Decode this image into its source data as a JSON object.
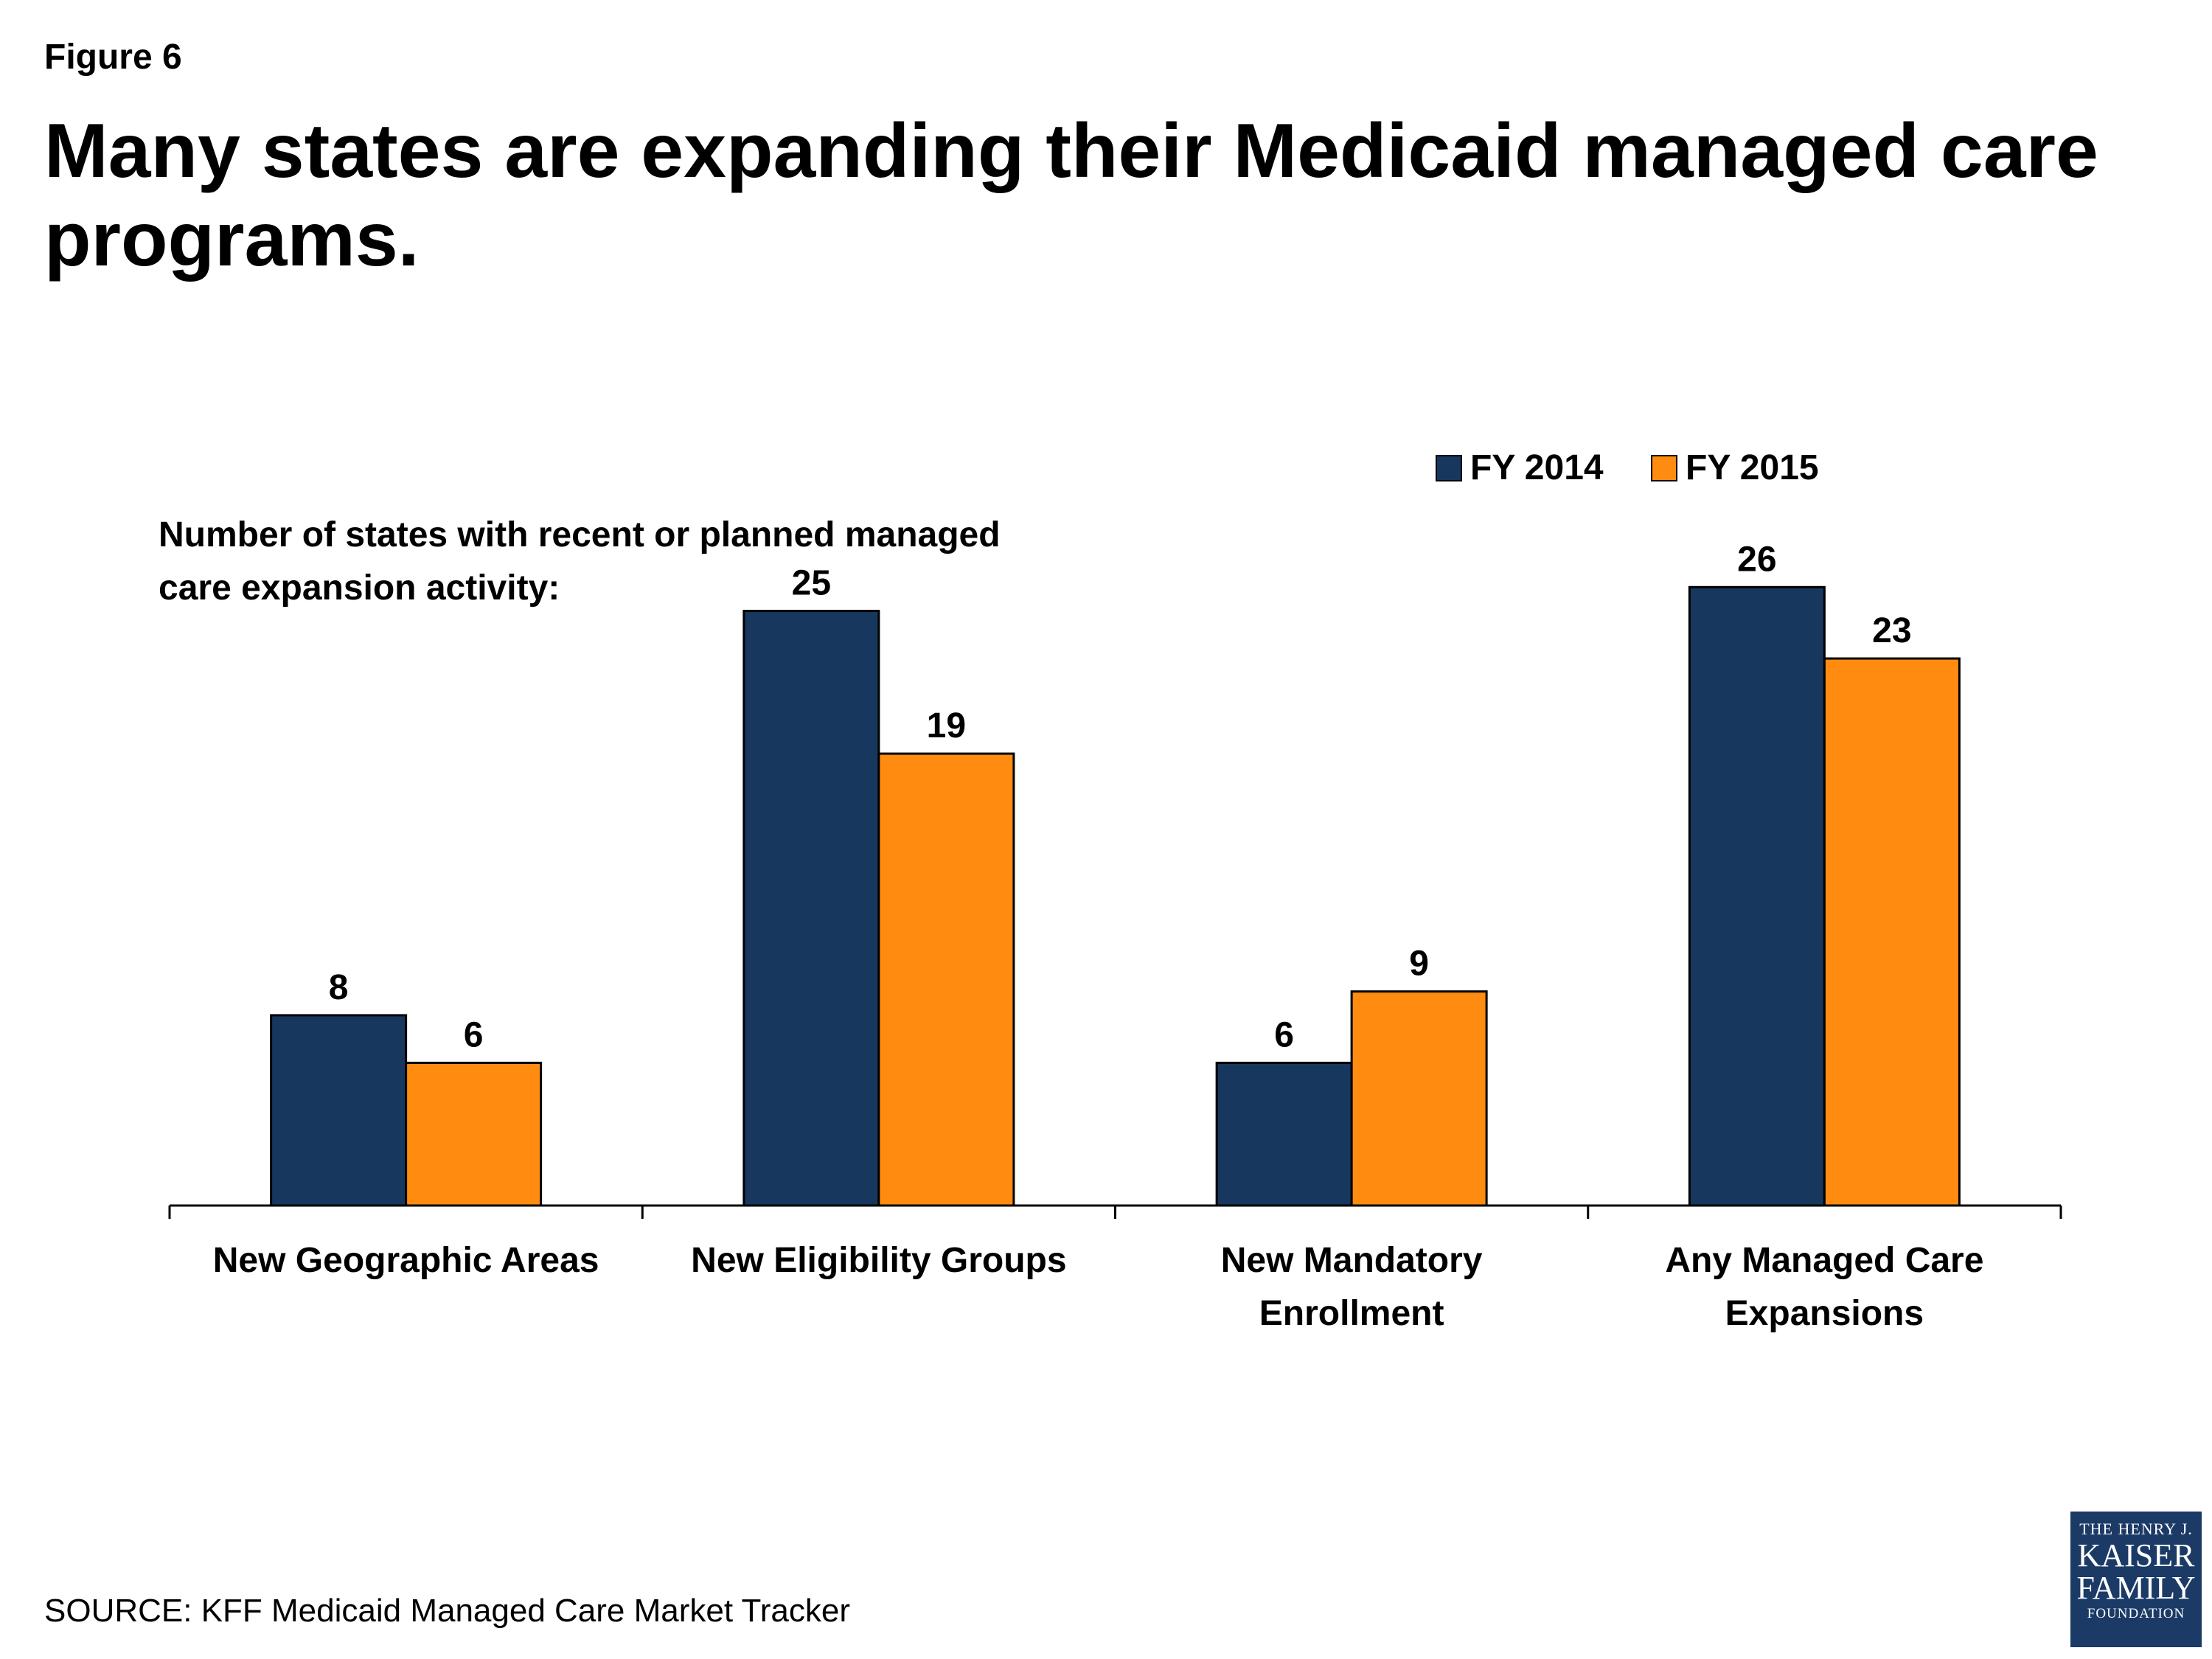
{
  "figure_label": "Figure 6",
  "title": "Many states are expanding their Medicaid managed care programs.",
  "source": "SOURCE: KFF Medicaid Managed Care Market Tracker",
  "logo": {
    "line1": "THE HENRY J.",
    "line2": "KAISER",
    "line3": "FAMILY",
    "line4": "FOUNDATION"
  },
  "chart_data": {
    "type": "bar",
    "title": "Many states are expanding their Medicaid managed care programs.",
    "ylabel": "Number of states with recent or planned managed care expansion activity:",
    "xlabel": "",
    "categories": [
      [
        "New Geographic Areas"
      ],
      [
        "New Eligibility Groups"
      ],
      [
        "New Mandatory",
        "Enrollment"
      ],
      [
        "Any Managed Care",
        "Expansions"
      ]
    ],
    "series": [
      {
        "name": "FY 2014",
        "color": "#17375e",
        "values": [
          8,
          25,
          6,
          26
        ]
      },
      {
        "name": "FY 2015",
        "color": "#ff8c10",
        "values": [
          6,
          19,
          9,
          23
        ]
      }
    ],
    "ylim": [
      0,
      31
    ],
    "grid": false,
    "legend": "top-right",
    "data_labels": true
  }
}
